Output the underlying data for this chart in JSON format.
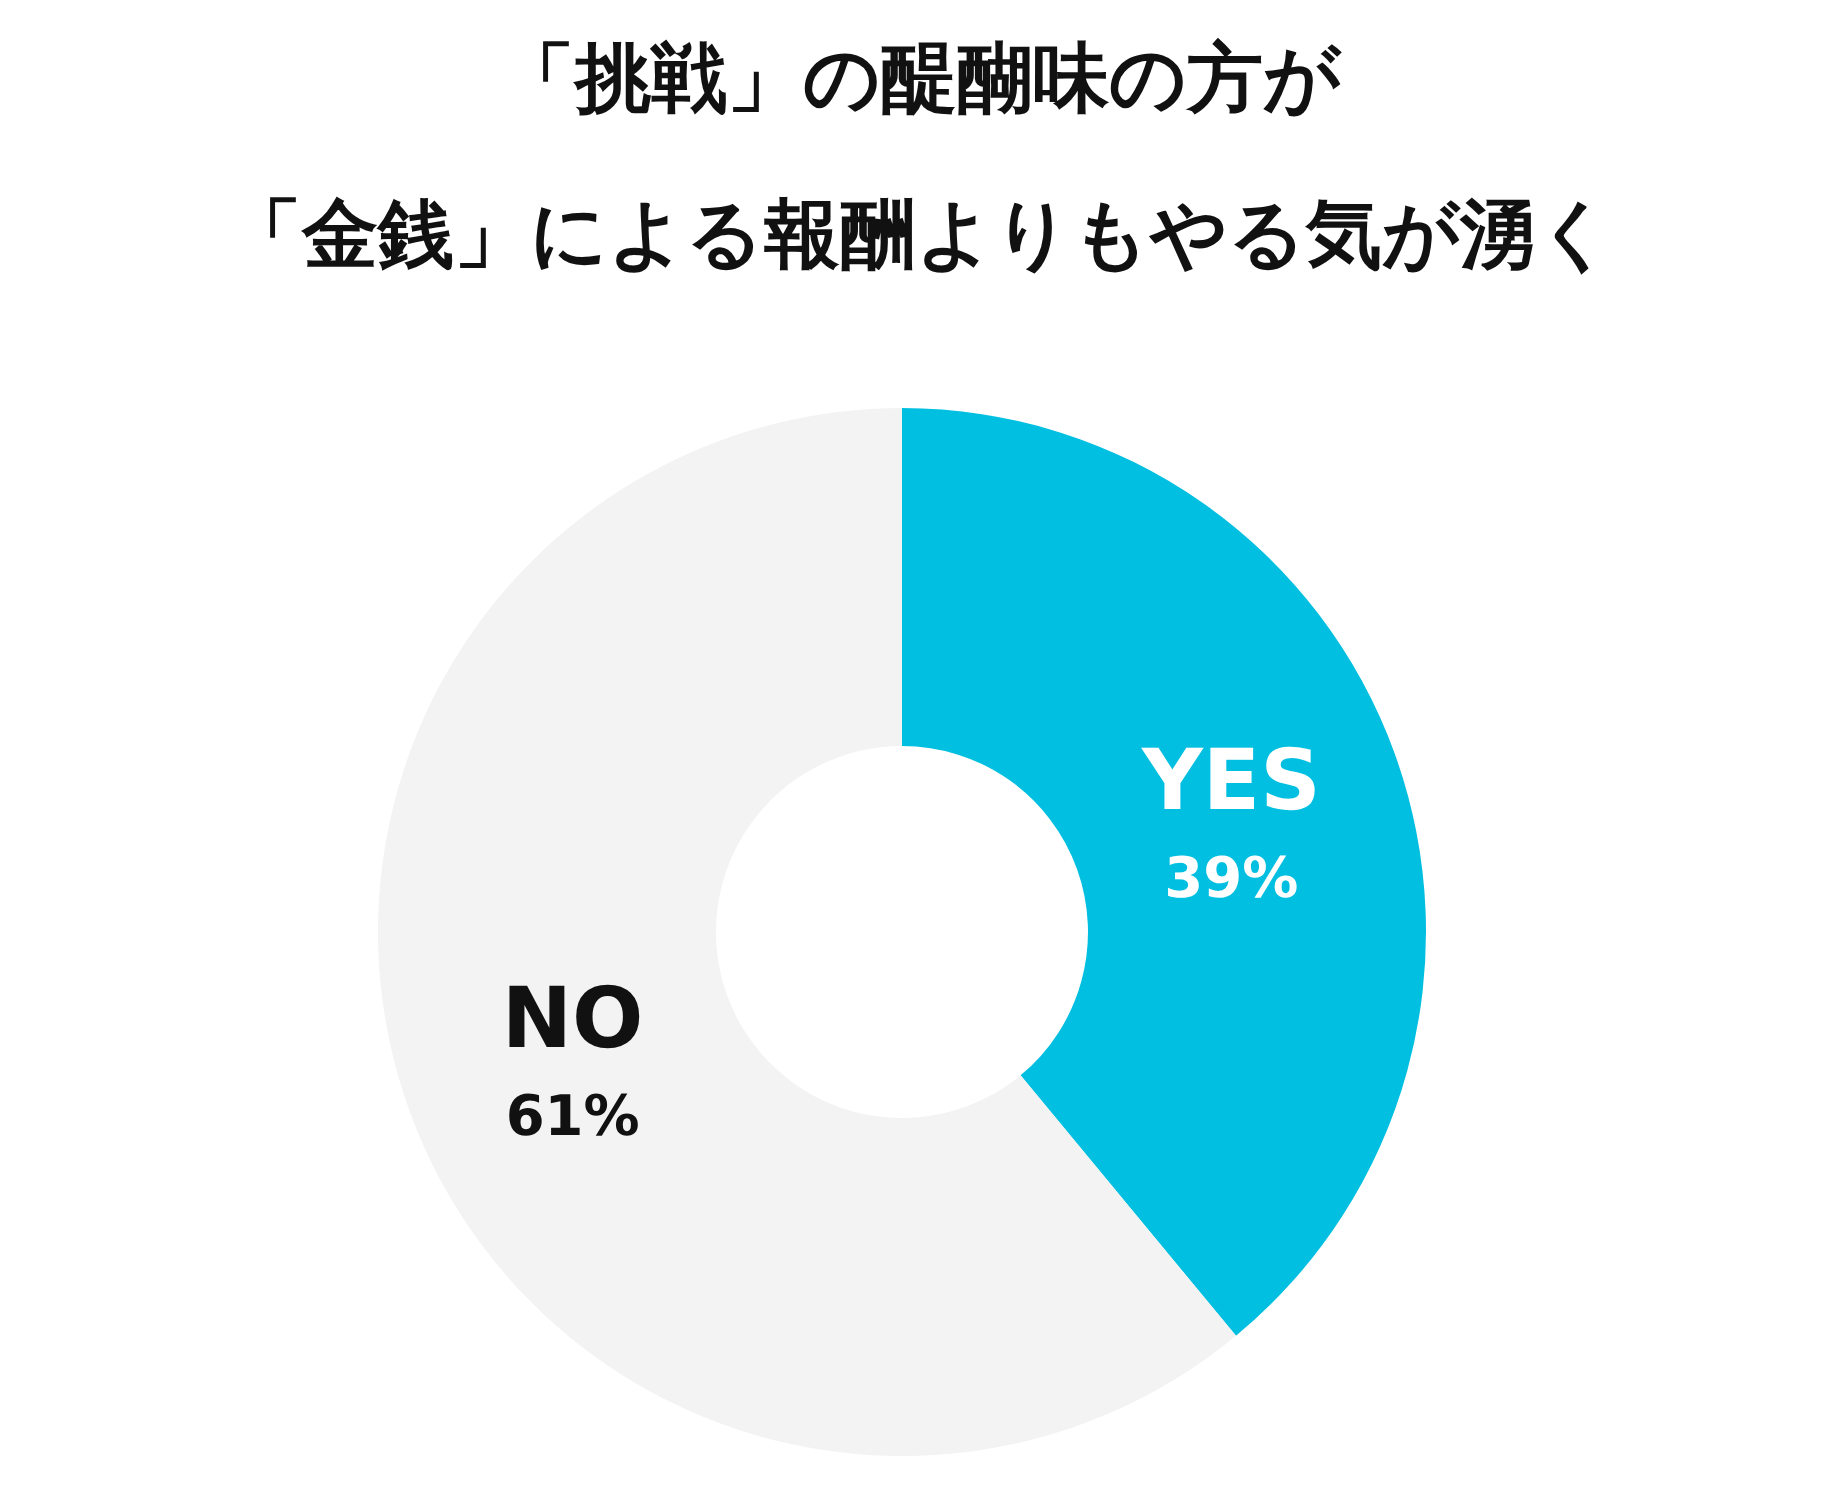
{
  "chart_data": {
    "type": "donut",
    "title": "「挑戦」の醍醐味の方が",
    "subtitle": "「金銭」による報酬よりもやる気が湧く",
    "categories": [
      "YES",
      "NO"
    ],
    "values": [
      39,
      61
    ],
    "colors": [
      "#00bfe0",
      "#f3f3f3"
    ],
    "value_labels": [
      "39%",
      "61%"
    ]
  }
}
